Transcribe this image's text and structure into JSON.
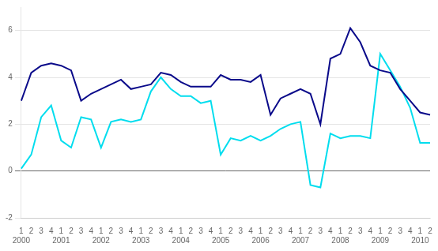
{
  "chart_data": {
    "type": "line",
    "categories": [
      [
        "1",
        "2000"
      ],
      [
        "2"
      ],
      [
        "3"
      ],
      [
        "4"
      ],
      [
        "1",
        "2001"
      ],
      [
        "2"
      ],
      [
        "3"
      ],
      [
        "4"
      ],
      [
        "1",
        "2002"
      ],
      [
        "2"
      ],
      [
        "3"
      ],
      [
        "4"
      ],
      [
        "1",
        "2003"
      ],
      [
        "2"
      ],
      [
        "3"
      ],
      [
        "4"
      ],
      [
        "1",
        "2004"
      ],
      [
        "2"
      ],
      [
        "3"
      ],
      [
        "4"
      ],
      [
        "1",
        "2005"
      ],
      [
        "2"
      ],
      [
        "3"
      ],
      [
        "4"
      ],
      [
        "1",
        "2006"
      ],
      [
        "2"
      ],
      [
        "3"
      ],
      [
        "4"
      ],
      [
        "1",
        "2007"
      ],
      [
        "2"
      ],
      [
        "3"
      ],
      [
        "4"
      ],
      [
        "1",
        "2008"
      ],
      [
        "2"
      ],
      [
        "3"
      ],
      [
        "4"
      ],
      [
        "1",
        "2009"
      ],
      [
        "2"
      ],
      [
        "3"
      ],
      [
        "4"
      ],
      [
        "1",
        "2010"
      ],
      [
        "2"
      ]
    ],
    "series": [
      {
        "color": "#0a0a8a",
        "values": [
          3.0,
          4.2,
          4.5,
          4.6,
          4.5,
          4.3,
          3.0,
          3.3,
          3.5,
          3.7,
          3.9,
          3.5,
          3.6,
          3.7,
          4.2,
          4.1,
          3.8,
          3.6,
          3.6,
          3.6,
          4.1,
          3.9,
          3.9,
          3.8,
          4.1,
          2.4,
          3.1,
          3.3,
          3.5,
          3.3,
          2.0,
          4.8,
          5.0,
          6.1,
          5.5,
          4.5,
          4.3,
          4.2,
          3.5,
          3.0,
          2.5,
          2.4
        ]
      },
      {
        "color": "#00ddee",
        "values": [
          0.1,
          0.7,
          2.3,
          2.8,
          1.3,
          1.0,
          2.3,
          2.2,
          1.0,
          2.1,
          2.2,
          2.1,
          2.2,
          3.4,
          4.0,
          3.5,
          3.2,
          3.2,
          2.9,
          3.0,
          0.7,
          1.4,
          1.3,
          1.5,
          1.3,
          1.5,
          1.8,
          2.0,
          2.1,
          -0.6,
          -0.7,
          1.6,
          1.4,
          1.5,
          1.5,
          1.4,
          5.0,
          4.3,
          3.6,
          2.7,
          1.2,
          1.2
        ]
      }
    ],
    "ylim": [
      -2,
      7
    ],
    "yticks": [
      -2,
      0,
      2,
      4,
      6
    ],
    "grid": true
  }
}
